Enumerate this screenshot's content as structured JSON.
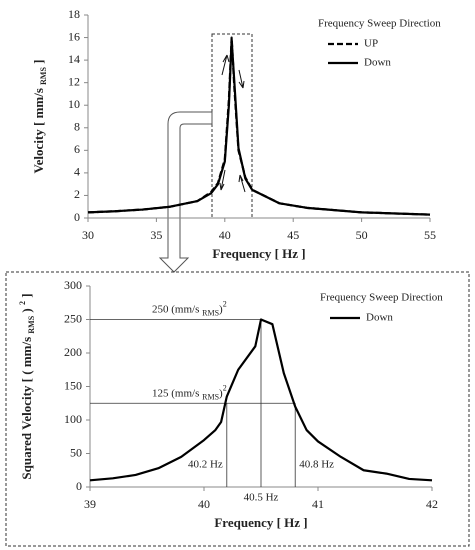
{
  "chart_data": [
    {
      "type": "line",
      "ylabel": [
        "Velocity [ mm/s ",
        "RMS",
        " ]"
      ],
      "xlabel": "Frequency [ Hz ]",
      "legend_title": "Frequency Sweep Direction",
      "x": [
        30,
        32,
        34,
        36,
        38,
        39,
        39.5,
        40,
        40.3,
        40.5,
        40.7,
        41,
        41.5,
        42,
        44,
        46,
        50,
        55
      ],
      "series": [
        {
          "name": "UP",
          "color": "#000000",
          "dash": true,
          "values": [
            0.5,
            0.6,
            0.75,
            1.0,
            1.5,
            2.3,
            3.1,
            5.2,
            10.5,
            16,
            11.5,
            6,
            3.6,
            2.5,
            1.3,
            0.9,
            0.5,
            0.3
          ]
        },
        {
          "name": "Down",
          "color": "#000000",
          "dash": false,
          "values": [
            0.5,
            0.6,
            0.75,
            1.0,
            1.5,
            2.2,
            3.0,
            5.0,
            10,
            15.8,
            12,
            6.2,
            3.5,
            2.5,
            1.3,
            0.9,
            0.5,
            0.3
          ]
        }
      ],
      "xlim": [
        30,
        55
      ],
      "xticks": [
        30,
        35,
        40,
        45,
        50,
        55
      ],
      "ylim": [
        0,
        18
      ],
      "yticks": [
        0,
        2,
        4,
        6,
        8,
        10,
        12,
        14,
        16,
        18
      ]
    },
    {
      "type": "line",
      "ylabel": [
        "Squared Velocity [ ( mm/s ",
        "RMS",
        " ) ",
        "2",
        " ]"
      ],
      "xlabel": "Frequency [ Hz ]",
      "legend_title": "Frequency Sweep Direction",
      "x": [
        39,
        39.2,
        39.4,
        39.6,
        39.8,
        40,
        40.1,
        40.15,
        40.2,
        40.3,
        40.45,
        40.5,
        40.6,
        40.7,
        40.8,
        40.9,
        41,
        41.2,
        41.4,
        41.6,
        41.8,
        42
      ],
      "series": [
        {
          "name": "Down",
          "color": "#000000",
          "dash": false,
          "values": [
            10,
            13,
            18,
            28,
            45,
            70,
            85,
            97,
            135,
            175,
            210,
            250,
            243,
            170,
            120,
            85,
            68,
            45,
            25,
            20,
            12,
            10
          ]
        }
      ],
      "hlines": [
        {
          "value": 250,
          "label": [
            "250  (mm/s ",
            "RMS",
            ")",
            "2"
          ]
        },
        {
          "value": 125,
          "label": [
            "125  (mm/s ",
            "RMS",
            ")",
            "2"
          ]
        }
      ],
      "vlines": [
        {
          "value": 40.2,
          "label": "40.2 Hz"
        },
        {
          "value": 40.5,
          "label": "40.5 Hz"
        },
        {
          "value": 40.8,
          "label": "40.8 Hz"
        }
      ],
      "xlim": [
        39,
        42
      ],
      "xticks": [
        39,
        40,
        41,
        42
      ],
      "ylim": [
        0,
        300
      ],
      "yticks": [
        0,
        50,
        100,
        150,
        200,
        250,
        300
      ]
    }
  ]
}
